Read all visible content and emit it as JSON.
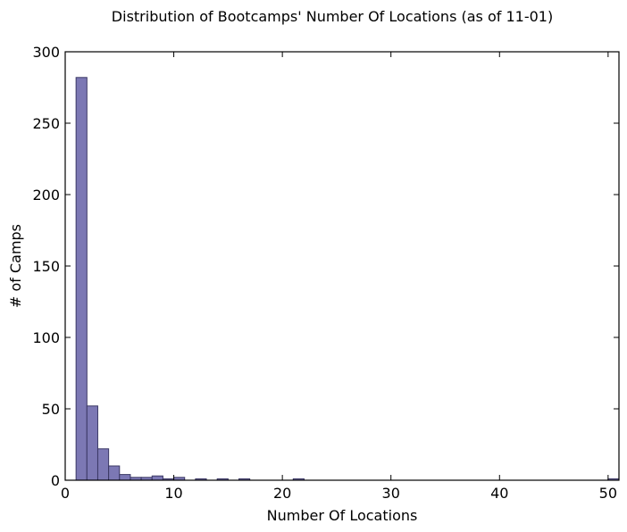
{
  "chart_data": {
    "type": "bar",
    "title": "Distribution of Bootcamps' Number Of Locations (as of 11-01)",
    "xlabel": "Number Of Locations",
    "ylabel": "# of Camps",
    "xlim": [
      0,
      51
    ],
    "ylim": [
      0,
      300
    ],
    "xticks": [
      0,
      10,
      20,
      30,
      40,
      50
    ],
    "yticks": [
      0,
      50,
      100,
      150,
      200,
      250,
      300
    ],
    "bin_width": 1,
    "bars": [
      {
        "x0": 1,
        "x1": 2,
        "count": 282
      },
      {
        "x0": 2,
        "x1": 3,
        "count": 52
      },
      {
        "x0": 3,
        "x1": 4,
        "count": 22
      },
      {
        "x0": 4,
        "x1": 5,
        "count": 10
      },
      {
        "x0": 5,
        "x1": 6,
        "count": 4
      },
      {
        "x0": 6,
        "x1": 7,
        "count": 2
      },
      {
        "x0": 7,
        "x1": 8,
        "count": 2
      },
      {
        "x0": 8,
        "x1": 9,
        "count": 3
      },
      {
        "x0": 9,
        "x1": 10,
        "count": 1
      },
      {
        "x0": 10,
        "x1": 11,
        "count": 2
      },
      {
        "x0": 12,
        "x1": 13,
        "count": 1
      },
      {
        "x0": 14,
        "x1": 15,
        "count": 1
      },
      {
        "x0": 16,
        "x1": 17,
        "count": 1
      },
      {
        "x0": 21,
        "x1": 22,
        "count": 1
      },
      {
        "x0": 50,
        "x1": 51,
        "count": 1
      }
    ],
    "bar_fill": "#7c78b4",
    "bar_edge": "#3b3865",
    "grid": false,
    "legend": "none"
  }
}
